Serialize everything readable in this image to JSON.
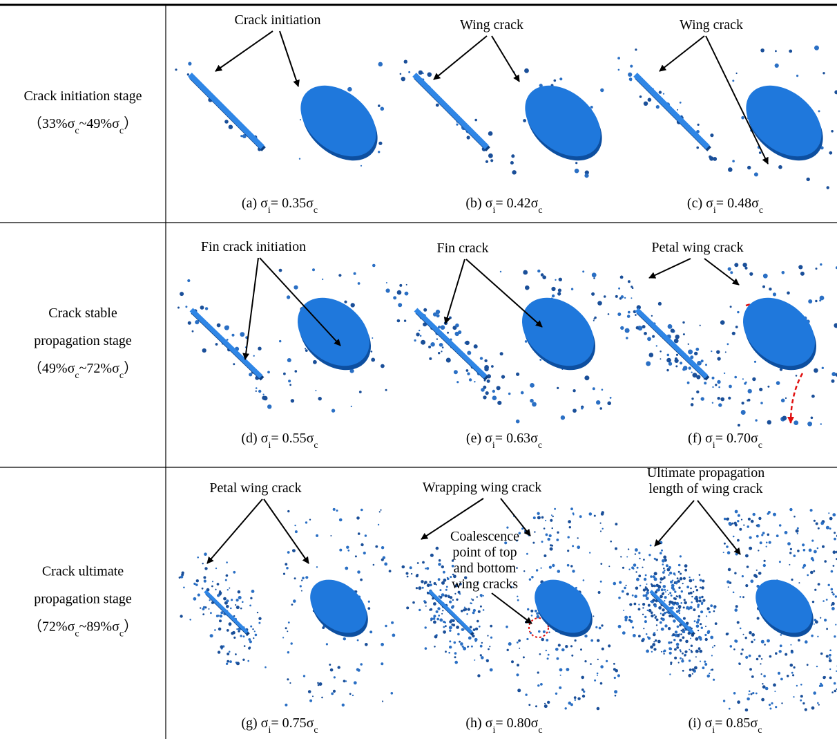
{
  "table": {
    "rows": [
      {
        "stage": {
          "name": [
            "Crack initiation stage"
          ],
          "range": [
            "（33%σ",
            "c",
            "~49%σ",
            "c",
            "）"
          ]
        },
        "panels": [
          {
            "caption": [
              "(a) σ",
              "i",
              "= 0.35σ",
              "c"
            ],
            "annotations": [
              [
                "Crack initiation"
              ]
            ]
          },
          {
            "caption": [
              "(b) σ",
              "i",
              "= 0.42σ",
              "c"
            ],
            "annotations": [
              [
                "Wing crack"
              ]
            ]
          },
          {
            "caption": [
              "(c) σ",
              "i",
              "= 0.48σ",
              "c"
            ],
            "annotations": [
              [
                "Wing crack"
              ]
            ]
          }
        ]
      },
      {
        "stage": {
          "name": [
            "Crack stable",
            "propagation stage"
          ],
          "range": [
            "（49%σ",
            "c",
            "~72%σ",
            "c",
            "）"
          ]
        },
        "panels": [
          {
            "caption": [
              "(d) σ",
              "i",
              "= 0.55σ",
              "c"
            ],
            "annotations": [
              [
                "Fin crack initiation"
              ]
            ]
          },
          {
            "caption": [
              "(e) σ",
              "i",
              "= 0.63σ",
              "c"
            ],
            "annotations": [
              [
                "Fin crack"
              ]
            ]
          },
          {
            "caption": [
              "(f) σ",
              "i",
              "= 0.70σ",
              "c"
            ],
            "annotations": [
              [
                "Petal wing crack"
              ]
            ]
          }
        ]
      },
      {
        "stage": {
          "name": [
            "Crack ultimate",
            "propagation stage"
          ],
          "range": [
            "（72%σ",
            "c",
            "~89%σ",
            "c",
            "）"
          ]
        },
        "panels": [
          {
            "caption": [
              "(g) σ",
              "i",
              "= 0.75σ",
              "c"
            ],
            "annotations": [
              [
                "Petal wing crack"
              ]
            ]
          },
          {
            "caption": [
              "(h) σ",
              "i",
              "= 0.80σ",
              "c"
            ],
            "annotations": [
              [
                "Wrapping wing crack"
              ],
              [
                "Coalescence",
                "point of top",
                "and bottom",
                "wing cracks"
              ]
            ]
          },
          {
            "caption": [
              "(i) σ",
              "i",
              "= 0.85σ",
              "c"
            ],
            "annotations": [
              [
                "Ultimate propagation",
                "length of wing crack"
              ]
            ]
          }
        ]
      }
    ]
  }
}
